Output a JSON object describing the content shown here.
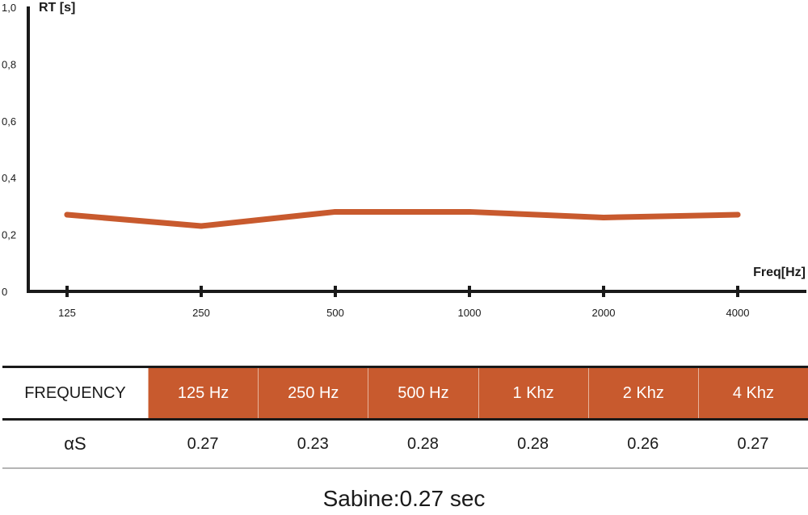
{
  "colors": {
    "series": "#c85a2e",
    "axis": "#1a1a1a"
  },
  "chart_data": {
    "type": "line",
    "title": "",
    "xlabel": "Freq[Hz]",
    "ylabel": "RT [s]",
    "categories": [
      "125",
      "250",
      "500",
      "1000",
      "2000",
      "4000"
    ],
    "ylim": [
      0,
      1.0
    ],
    "yticks": [
      "0",
      "0,2",
      "0,4",
      "0,6",
      "0,8",
      "1,0"
    ],
    "grid": false,
    "series": [
      {
        "values": [
          0.27,
          0.23,
          0.28,
          0.28,
          0.26,
          0.27
        ]
      }
    ]
  },
  "table": {
    "header_label": "FREQUENCY",
    "frequencies": [
      "125 Hz",
      "250 Hz",
      "500 Hz",
      "1 Khz",
      "2 Khz",
      "4 Khz"
    ],
    "row_label": "αS",
    "values": [
      "0.27",
      "0.23",
      "0.28",
      "0.28",
      "0.26",
      "0.27"
    ]
  },
  "summary": "Sabine:0.27 sec"
}
